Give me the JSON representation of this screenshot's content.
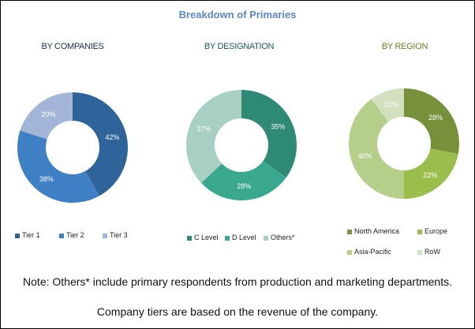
{
  "chart_data": {
    "type": "pie",
    "title": "Breakdown of Primaries",
    "charts": [
      {
        "title": "BY COMPANIES",
        "title_color": "#1f2f44",
        "categories": [
          "Tier 1",
          "Tier 2",
          "Tier 3"
        ],
        "values": [
          42,
          38,
          20
        ],
        "labels": [
          "42%",
          "38%",
          "20%"
        ],
        "colors": [
          "#2e6499",
          "#3f7fc4",
          "#a3b5d6"
        ]
      },
      {
        "title": "BY DESIGNATION",
        "title_color": "#1f5a55",
        "categories": [
          "C Level",
          "D Level",
          "Others*"
        ],
        "values": [
          35,
          28,
          37
        ],
        "labels": [
          "35%",
          "28%",
          "37%"
        ],
        "colors": [
          "#2e8a75",
          "#3aa88e",
          "#a7cfc3"
        ]
      },
      {
        "title": "BY REGION",
        "title_color": "#6b7d2a",
        "categories": [
          "North America",
          "Europe",
          "Asia-Pacific",
          "RoW"
        ],
        "values": [
          28,
          22,
          40,
          10
        ],
        "labels": [
          "28%",
          "22%",
          "40%",
          "10%"
        ],
        "colors": [
          "#76913a",
          "#9bbd4b",
          "#b5cf8a",
          "#d3e0c0"
        ]
      }
    ]
  },
  "notes": {
    "line1": "Note: Others* include primary respondents from production and marketing departments.",
    "line2": "Company tiers are based on the revenue of the company."
  }
}
